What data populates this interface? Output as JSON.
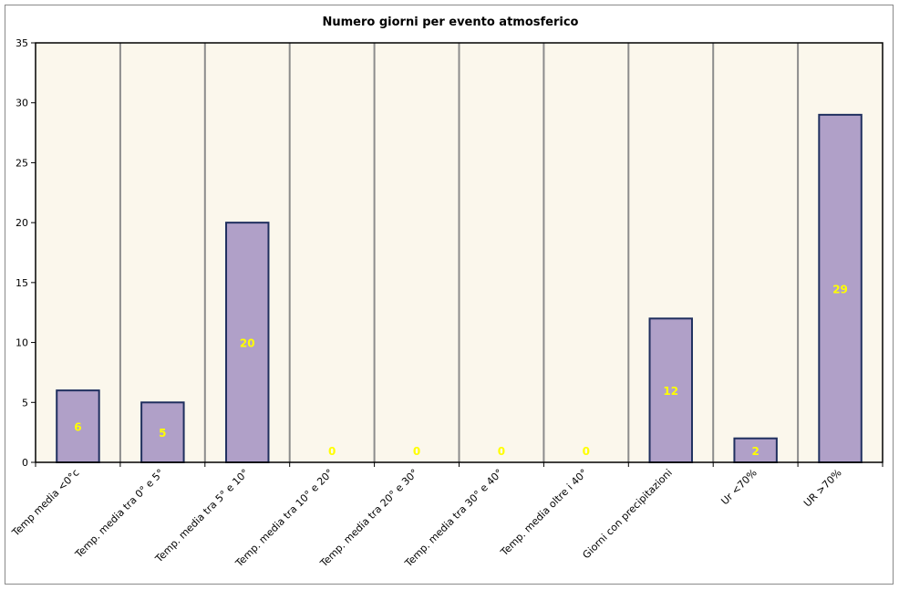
{
  "chart_data": {
    "type": "bar",
    "title": "Numero giorni per evento atmosferico",
    "xlabel": "",
    "ylabel": "",
    "ylim": [
      0,
      35
    ],
    "yticks": [
      0,
      5,
      10,
      15,
      20,
      25,
      30,
      35
    ],
    "grid": "vertical lines between categories",
    "legend": "none",
    "categories": [
      "Temp media <0°c",
      "Temp. media tra 0° e 5°",
      "Temp. media tra 5° e 10°",
      "Temp. media tra 10° e 20°",
      "Temp. media tra 20° e 30°",
      "Temp. media tra 30° e 40°",
      "Temp. media oltre i 40°",
      "Giorni con precipitazioni",
      "Ur <70%",
      "UR >70%"
    ],
    "values": [
      6,
      5,
      20,
      0,
      0,
      0,
      0,
      12,
      2,
      29
    ],
    "colors": {
      "bar_fill": "#b0a0c8",
      "bar_stroke": "#1f2f5f",
      "plot_bg": "#fbf7ec",
      "grid": "#8c8c8c",
      "data_label": "#ffff00",
      "axis": "#000000"
    }
  }
}
